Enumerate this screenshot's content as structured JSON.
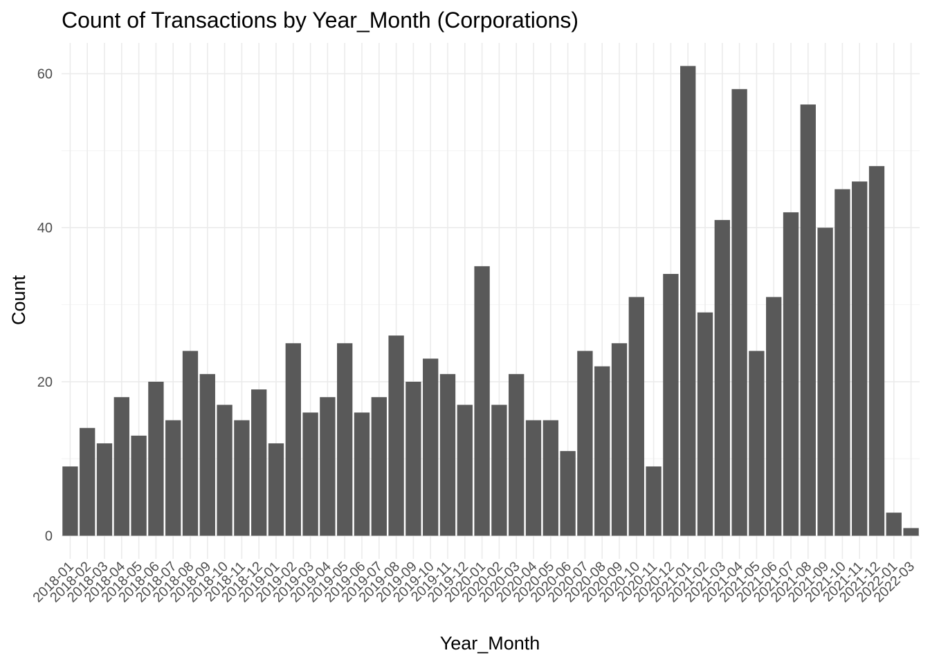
{
  "chart_data": {
    "type": "bar",
    "title": "Count of Transactions by Year_Month (Corporations)",
    "xlabel": "Year_Month",
    "ylabel": "Count",
    "ylim": [
      -3,
      64
    ],
    "yticks": [
      0,
      20,
      40,
      60
    ],
    "grid": true,
    "bar_color": "#595959",
    "categories": [
      "2018-01",
      "2018-02",
      "2018-03",
      "2018-04",
      "2018-05",
      "2018-06",
      "2018-07",
      "2018-08",
      "2018-09",
      "2018-10",
      "2018-11",
      "2018-12",
      "2019-01",
      "2019-02",
      "2019-03",
      "2019-04",
      "2019-05",
      "2019-06",
      "2019-07",
      "2019-08",
      "2019-09",
      "2019-10",
      "2019-11",
      "2019-12",
      "2020-01",
      "2020-02",
      "2020-03",
      "2020-04",
      "2020-05",
      "2020-06",
      "2020-07",
      "2020-08",
      "2020-09",
      "2020-10",
      "2020-11",
      "2020-12",
      "2021-01",
      "2021-02",
      "2021-03",
      "2021-04",
      "2021-05",
      "2021-06",
      "2021-07",
      "2021-08",
      "2021-09",
      "2021-10",
      "2021-11",
      "2021-12",
      "2022-01",
      "2022-03"
    ],
    "values": [
      9,
      14,
      12,
      18,
      13,
      20,
      15,
      24,
      21,
      17,
      15,
      19,
      12,
      25,
      16,
      18,
      25,
      16,
      18,
      26,
      20,
      23,
      21,
      17,
      35,
      17,
      21,
      15,
      15,
      11,
      24,
      22,
      25,
      31,
      9,
      34,
      61,
      29,
      41,
      58,
      24,
      31,
      42,
      56,
      40,
      45,
      46,
      48,
      3,
      1
    ]
  }
}
